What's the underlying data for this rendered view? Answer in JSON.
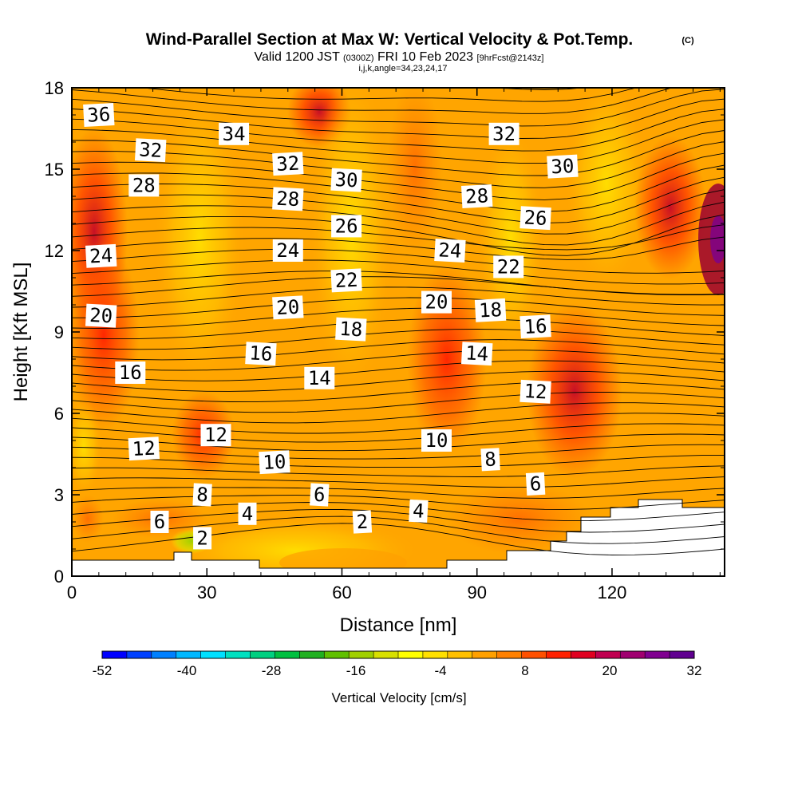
{
  "title": {
    "main": "Wind-Parallel Section at Max W: Vertical Velocity & Pot.Temp.",
    "copyright": "(C)",
    "valid_prefix": "Valid 1200 JST",
    "utc": "(0300Z)",
    "valid_date": "FRI 10 Feb 2023",
    "forecast": "[9hrFcst@2143z]",
    "params": "i,j,k,angle=34,23,24,17"
  },
  "chart_data": {
    "type": "heatmap",
    "title": "Wind-Parallel Section at Max W: Vertical Velocity & Pot.Temp.",
    "xlabel": "Distance [nm]",
    "ylabel": "Height [Kft MSL]",
    "xlim": [
      0,
      145
    ],
    "ylim": [
      0,
      18
    ],
    "x_ticks": [
      0,
      30,
      60,
      90,
      120
    ],
    "y_ticks": [
      0,
      3,
      6,
      9,
      12,
      15,
      18
    ],
    "grid": false,
    "colorbar": {
      "title": "Vertical Velocity [cm/s]",
      "ticks": [
        -52,
        -40,
        -28,
        -16,
        -4,
        8,
        20,
        32
      ],
      "min": -52,
      "max": 32,
      "colors": [
        "#0000ff",
        "#0040ff",
        "#0080ff",
        "#00b8ff",
        "#00e0ff",
        "#00e0c0",
        "#00d080",
        "#00c040",
        "#20b020",
        "#60c000",
        "#a0d000",
        "#d8e000",
        "#ffff00",
        "#ffe000",
        "#ffc000",
        "#ffa000",
        "#ff8000",
        "#ff5000",
        "#ff2000",
        "#e00020",
        "#c00050",
        "#a00070",
        "#800090",
        "#600090"
      ]
    },
    "field_description": "vertical velocity mostly positive (orange to red) with potential temperature contours",
    "contour_labels": [
      {
        "text": "36",
        "x": 6,
        "y": 17.0
      },
      {
        "text": "34",
        "x": 36,
        "y": 16.3
      },
      {
        "text": "32",
        "x": 17.5,
        "y": 15.7
      },
      {
        "text": "32",
        "x": 48,
        "y": 15.2
      },
      {
        "text": "32",
        "x": 96,
        "y": 16.3
      },
      {
        "text": "30",
        "x": 61,
        "y": 14.6
      },
      {
        "text": "30",
        "x": 109,
        "y": 15.1
      },
      {
        "text": "28",
        "x": 16,
        "y": 14.4
      },
      {
        "text": "28",
        "x": 48,
        "y": 13.9
      },
      {
        "text": "28",
        "x": 90,
        "y": 14.0
      },
      {
        "text": "26",
        "x": 61,
        "y": 12.9
      },
      {
        "text": "26",
        "x": 103,
        "y": 13.2
      },
      {
        "text": "24",
        "x": 6.5,
        "y": 11.8
      },
      {
        "text": "24",
        "x": 48,
        "y": 12.0
      },
      {
        "text": "24",
        "x": 84,
        "y": 12.0
      },
      {
        "text": "22",
        "x": 61,
        "y": 10.9
      },
      {
        "text": "22",
        "x": 97,
        "y": 11.4
      },
      {
        "text": "20",
        "x": 6.5,
        "y": 9.6
      },
      {
        "text": "20",
        "x": 48,
        "y": 9.9
      },
      {
        "text": "20",
        "x": 81,
        "y": 10.1
      },
      {
        "text": "18",
        "x": 62,
        "y": 9.1
      },
      {
        "text": "18",
        "x": 93,
        "y": 9.8
      },
      {
        "text": "16",
        "x": 13,
        "y": 7.5
      },
      {
        "text": "16",
        "x": 42,
        "y": 8.2
      },
      {
        "text": "16",
        "x": 103,
        "y": 9.2
      },
      {
        "text": "14",
        "x": 55,
        "y": 7.3
      },
      {
        "text": "14",
        "x": 90,
        "y": 8.2
      },
      {
        "text": "12",
        "x": 16,
        "y": 4.7
      },
      {
        "text": "12",
        "x": 32,
        "y": 5.2
      },
      {
        "text": "12",
        "x": 103,
        "y": 6.8
      },
      {
        "text": "10",
        "x": 45,
        "y": 4.2
      },
      {
        "text": "10",
        "x": 81,
        "y": 5.0
      },
      {
        "text": "8",
        "x": 29,
        "y": 3.0
      },
      {
        "text": "8",
        "x": 93,
        "y": 4.3
      },
      {
        "text": "6",
        "x": 19.5,
        "y": 2.0
      },
      {
        "text": "6",
        "x": 55,
        "y": 3.0
      },
      {
        "text": "6",
        "x": 103,
        "y": 3.4
      },
      {
        "text": "4",
        "x": 39,
        "y": 2.3
      },
      {
        "text": "4",
        "x": 77,
        "y": 2.4
      },
      {
        "text": "2",
        "x": 64.5,
        "y": 2.0
      },
      {
        "text": "2",
        "x": 29,
        "y": 1.4
      }
    ]
  }
}
